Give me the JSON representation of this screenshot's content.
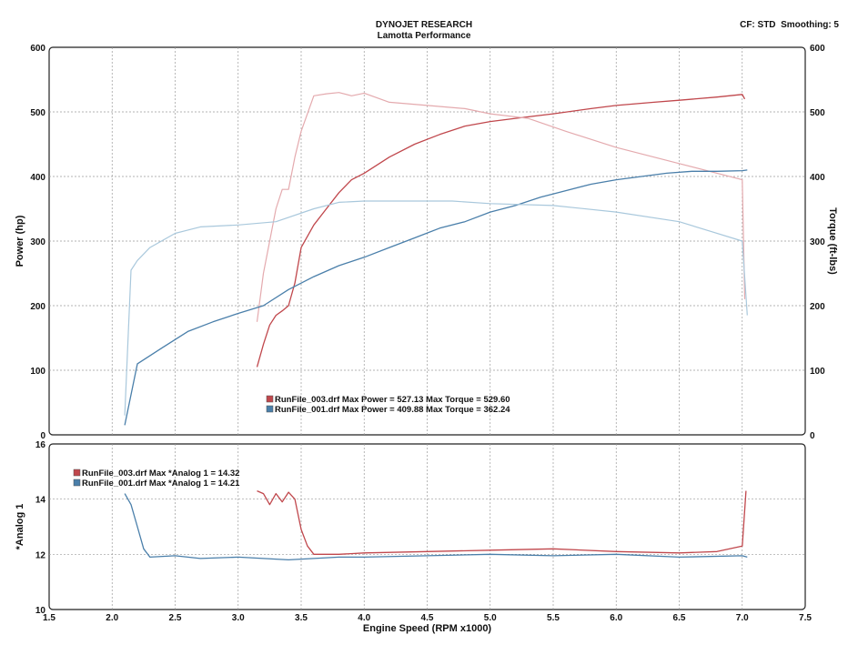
{
  "header": {
    "title": "DYNOJET RESEARCH",
    "subtitle": "Lamotta Performance",
    "cf_label": "CF: STD",
    "smoothing_label": "Smoothing: 5"
  },
  "colors": {
    "run003": "#c0474c",
    "run003_light": "#e4aaae",
    "run001": "#4a7faa",
    "run001_light": "#a9c8dc",
    "grid": "#9a9a9a"
  },
  "chart_data": [
    {
      "type": "line",
      "title": "DYNOJET RESEARCH",
      "subtitle": "Lamotta Performance",
      "xlabel": "Engine Speed (RPM x1000)",
      "ylabel": "Power (hp)",
      "y2label": "Torque (ft-lbs)",
      "xlim": [
        1.5,
        7.5
      ],
      "ylim": [
        0,
        600
      ],
      "y2lim": [
        0,
        600
      ],
      "xticks": [
        "1.5",
        "2.0",
        "2.5",
        "3.0",
        "3.5",
        "4.0",
        "4.5",
        "5.0",
        "5.5",
        "6.0",
        "6.5",
        "7.0",
        "7.5"
      ],
      "yticks": [
        "0",
        "100",
        "200",
        "300",
        "400",
        "500",
        "600"
      ],
      "grid": true,
      "legend": [
        "RunFile_003.drf Max Power = 527.13     Max Torque = 529.60",
        "RunFile_001.drf Max Power = 409.88     Max Torque = 362.24"
      ],
      "series": [
        {
          "name": "RunFile_003.drf Power",
          "x": [
            3.15,
            3.2,
            3.25,
            3.3,
            3.35,
            3.4,
            3.45,
            3.5,
            3.6,
            3.7,
            3.8,
            3.9,
            4.0,
            4.2,
            4.4,
            4.6,
            4.8,
            5.0,
            5.2,
            5.5,
            5.8,
            6.0,
            6.3,
            6.5,
            6.8,
            7.0,
            7.02
          ],
          "y": [
            105,
            140,
            170,
            185,
            192,
            200,
            235,
            290,
            325,
            350,
            375,
            395,
            405,
            430,
            450,
            465,
            478,
            485,
            490,
            497,
            505,
            510,
            515,
            518,
            523,
            527,
            520
          ]
        },
        {
          "name": "RunFile_003.drf Torque",
          "x": [
            3.15,
            3.2,
            3.25,
            3.3,
            3.35,
            3.4,
            3.45,
            3.5,
            3.6,
            3.7,
            3.8,
            3.9,
            4.0,
            4.2,
            4.5,
            4.8,
            5.0,
            5.3,
            5.6,
            6.0,
            6.5,
            7.0,
            7.02
          ],
          "y": [
            175,
            250,
            300,
            350,
            380,
            380,
            430,
            470,
            525,
            528,
            530,
            525,
            529,
            515,
            510,
            505,
            497,
            490,
            470,
            445,
            420,
            395,
            210
          ]
        },
        {
          "name": "RunFile_001.drf Power",
          "x": [
            2.1,
            2.2,
            2.4,
            2.6,
            2.8,
            3.0,
            3.2,
            3.4,
            3.6,
            3.8,
            4.0,
            4.2,
            4.4,
            4.6,
            4.8,
            5.0,
            5.2,
            5.4,
            5.6,
            5.8,
            6.0,
            6.2,
            6.4,
            6.6,
            6.8,
            7.0,
            7.04
          ],
          "y": [
            15,
            110,
            135,
            160,
            175,
            188,
            200,
            225,
            245,
            262,
            275,
            290,
            305,
            320,
            330,
            345,
            355,
            368,
            378,
            388,
            395,
            400,
            405,
            408,
            408,
            409,
            410
          ]
        },
        {
          "name": "RunFile_001.drf Torque",
          "x": [
            2.1,
            2.15,
            2.2,
            2.3,
            2.5,
            2.7,
            3.0,
            3.3,
            3.6,
            3.8,
            4.0,
            4.4,
            4.7,
            5.0,
            5.5,
            6.0,
            6.5,
            7.0,
            7.04
          ],
          "y": [
            30,
            255,
            270,
            290,
            312,
            322,
            325,
            330,
            350,
            360,
            362,
            362,
            362,
            358,
            355,
            345,
            330,
            300,
            185
          ]
        }
      ]
    },
    {
      "type": "line",
      "xlabel": "Engine Speed (RPM x1000)",
      "ylabel": "*Analog 1",
      "xlim": [
        1.5,
        7.5
      ],
      "ylim": [
        10,
        16
      ],
      "xticks": [
        "1.5",
        "2.0",
        "2.5",
        "3.0",
        "3.5",
        "4.0",
        "4.5",
        "5.0",
        "5.5",
        "6.0",
        "6.5",
        "7.0",
        "7.5"
      ],
      "yticks": [
        "10",
        "12",
        "14",
        "16"
      ],
      "grid": true,
      "legend": [
        "RunFile_003.drf Max *Analog 1 = 14.32",
        "RunFile_001.drf Max *Analog 1 = 14.21"
      ],
      "series": [
        {
          "name": "RunFile_003.drf *Analog 1",
          "x": [
            3.15,
            3.2,
            3.25,
            3.3,
            3.35,
            3.4,
            3.45,
            3.5,
            3.55,
            3.6,
            3.7,
            3.8,
            4.0,
            4.5,
            5.0,
            5.5,
            6.0,
            6.5,
            6.8,
            7.0,
            7.03
          ],
          "y": [
            14.3,
            14.2,
            13.8,
            14.2,
            13.9,
            14.25,
            14.0,
            12.9,
            12.3,
            12.0,
            12.0,
            12.0,
            12.05,
            12.1,
            12.15,
            12.2,
            12.1,
            12.05,
            12.1,
            12.3,
            14.3
          ]
        },
        {
          "name": "RunFile_001.drf *Analog 1",
          "x": [
            2.1,
            2.15,
            2.2,
            2.25,
            2.3,
            2.5,
            2.7,
            3.0,
            3.2,
            3.4,
            3.6,
            3.8,
            4.0,
            4.5,
            5.0,
            5.5,
            6.0,
            6.5,
            7.0,
            7.04
          ],
          "y": [
            14.2,
            13.8,
            13.0,
            12.2,
            11.9,
            11.95,
            11.85,
            11.9,
            11.85,
            11.8,
            11.85,
            11.9,
            11.9,
            11.95,
            12.0,
            11.95,
            12.0,
            11.9,
            11.95,
            11.9
          ]
        }
      ]
    }
  ]
}
